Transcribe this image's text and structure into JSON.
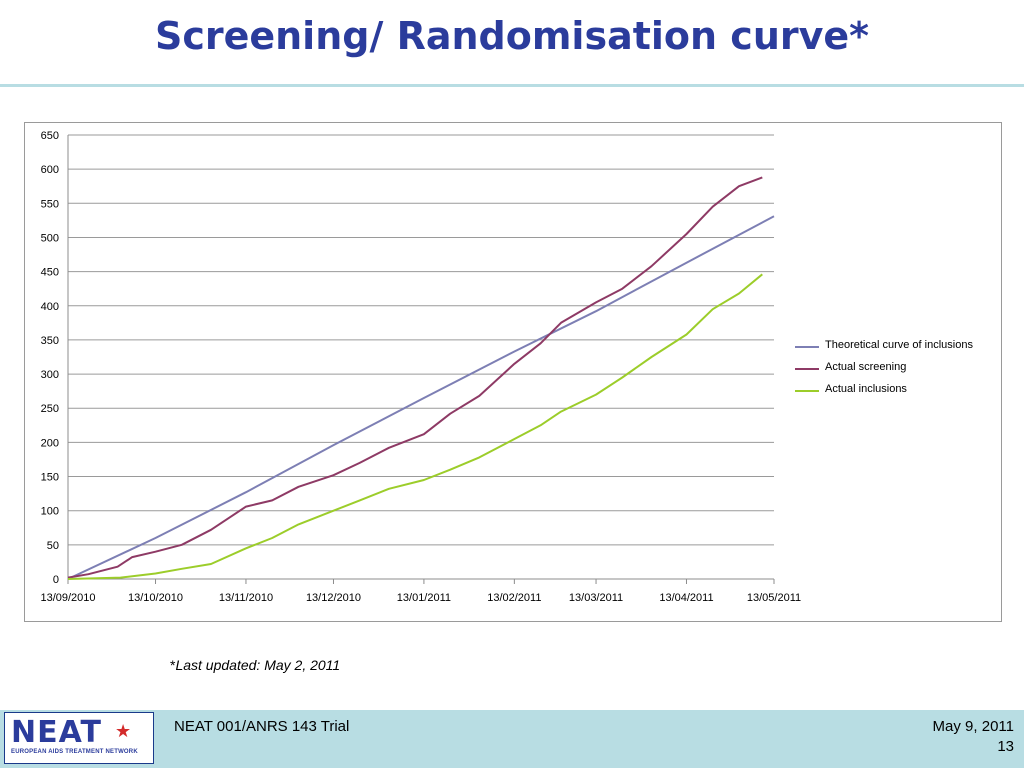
{
  "slide": {
    "title": "Screening/ Randomisation curve*",
    "footnote_star": "*",
    "footnote_text": "Last updated: May 2, 2011"
  },
  "footer": {
    "trial_name": "NEAT 001/ANRS 143 Trial",
    "date": "May 9, 2011",
    "page_number": "13",
    "logo_text": "NEAT",
    "logo_subtitle": "EUROPEAN AIDS TREATMENT NETWORK"
  },
  "colors": {
    "title": "#2b3c9c",
    "band": "#b8dde3",
    "theoretical": "#7d7fb4",
    "screening": "#8e3a65",
    "inclusions": "#9ccd2a"
  },
  "chart_data": {
    "type": "line",
    "title": "",
    "xlabel": "",
    "ylabel": "",
    "x_ticks": [
      "13/09/2010",
      "13/10/2010",
      "13/11/2010",
      "13/12/2010",
      "13/01/2011",
      "13/02/2011",
      "13/03/2011",
      "13/04/2011",
      "13/05/2011"
    ],
    "ylim": [
      0,
      650
    ],
    "y_ticks": [
      0,
      50,
      100,
      150,
      200,
      250,
      300,
      350,
      400,
      450,
      500,
      550,
      600,
      650
    ],
    "grid": "horizontal",
    "legend_position": "right",
    "series": [
      {
        "name": "Theoretical curve of inclusions",
        "color": "#7d7fb4",
        "points": [
          [
            "13/09/2010",
            0
          ],
          [
            "13/10/2010",
            60
          ],
          [
            "13/11/2010",
            127
          ],
          [
            "13/12/2010",
            196
          ],
          [
            "13/01/2011",
            265
          ],
          [
            "13/02/2011",
            333
          ],
          [
            "13/03/2011",
            392
          ],
          [
            "13/04/2011",
            463
          ],
          [
            "13/05/2011",
            531
          ]
        ]
      },
      {
        "name": "Actual screening",
        "color": "#8e3a65",
        "points": [
          [
            "13/09/2010",
            2
          ],
          [
            "20/09/2010",
            7
          ],
          [
            "30/09/2010",
            18
          ],
          [
            "05/10/2010",
            32
          ],
          [
            "13/10/2010",
            40
          ],
          [
            "22/10/2010",
            50
          ],
          [
            "01/11/2010",
            72
          ],
          [
            "13/11/2010",
            106
          ],
          [
            "22/11/2010",
            115
          ],
          [
            "01/12/2010",
            135
          ],
          [
            "13/12/2010",
            152
          ],
          [
            "22/12/2010",
            170
          ],
          [
            "01/01/2011",
            192
          ],
          [
            "13/01/2011",
            212
          ],
          [
            "22/01/2011",
            242
          ],
          [
            "01/02/2011",
            268
          ],
          [
            "13/02/2011",
            315
          ],
          [
            "22/02/2011",
            345
          ],
          [
            "01/03/2011",
            375
          ],
          [
            "13/03/2011",
            405
          ],
          [
            "22/03/2011",
            425
          ],
          [
            "01/04/2011",
            458
          ],
          [
            "13/04/2011",
            505
          ],
          [
            "22/04/2011",
            545
          ],
          [
            "01/05/2011",
            575
          ],
          [
            "09/05/2011",
            588
          ]
        ]
      },
      {
        "name": "Actual inclusions",
        "color": "#9ccd2a",
        "points": [
          [
            "13/09/2010",
            0
          ],
          [
            "01/10/2010",
            2
          ],
          [
            "13/10/2010",
            8
          ],
          [
            "22/10/2010",
            15
          ],
          [
            "01/11/2010",
            22
          ],
          [
            "13/11/2010",
            45
          ],
          [
            "22/11/2010",
            60
          ],
          [
            "01/12/2010",
            80
          ],
          [
            "13/12/2010",
            100
          ],
          [
            "22/12/2010",
            115
          ],
          [
            "01/01/2011",
            132
          ],
          [
            "13/01/2011",
            145
          ],
          [
            "22/01/2011",
            160
          ],
          [
            "01/02/2011",
            178
          ],
          [
            "13/02/2011",
            205
          ],
          [
            "22/02/2011",
            225
          ],
          [
            "01/03/2011",
            245
          ],
          [
            "13/03/2011",
            270
          ],
          [
            "22/03/2011",
            295
          ],
          [
            "01/04/2011",
            325
          ],
          [
            "13/04/2011",
            358
          ],
          [
            "22/04/2011",
            395
          ],
          [
            "01/05/2011",
            418
          ],
          [
            "09/05/2011",
            446
          ]
        ]
      }
    ]
  }
}
